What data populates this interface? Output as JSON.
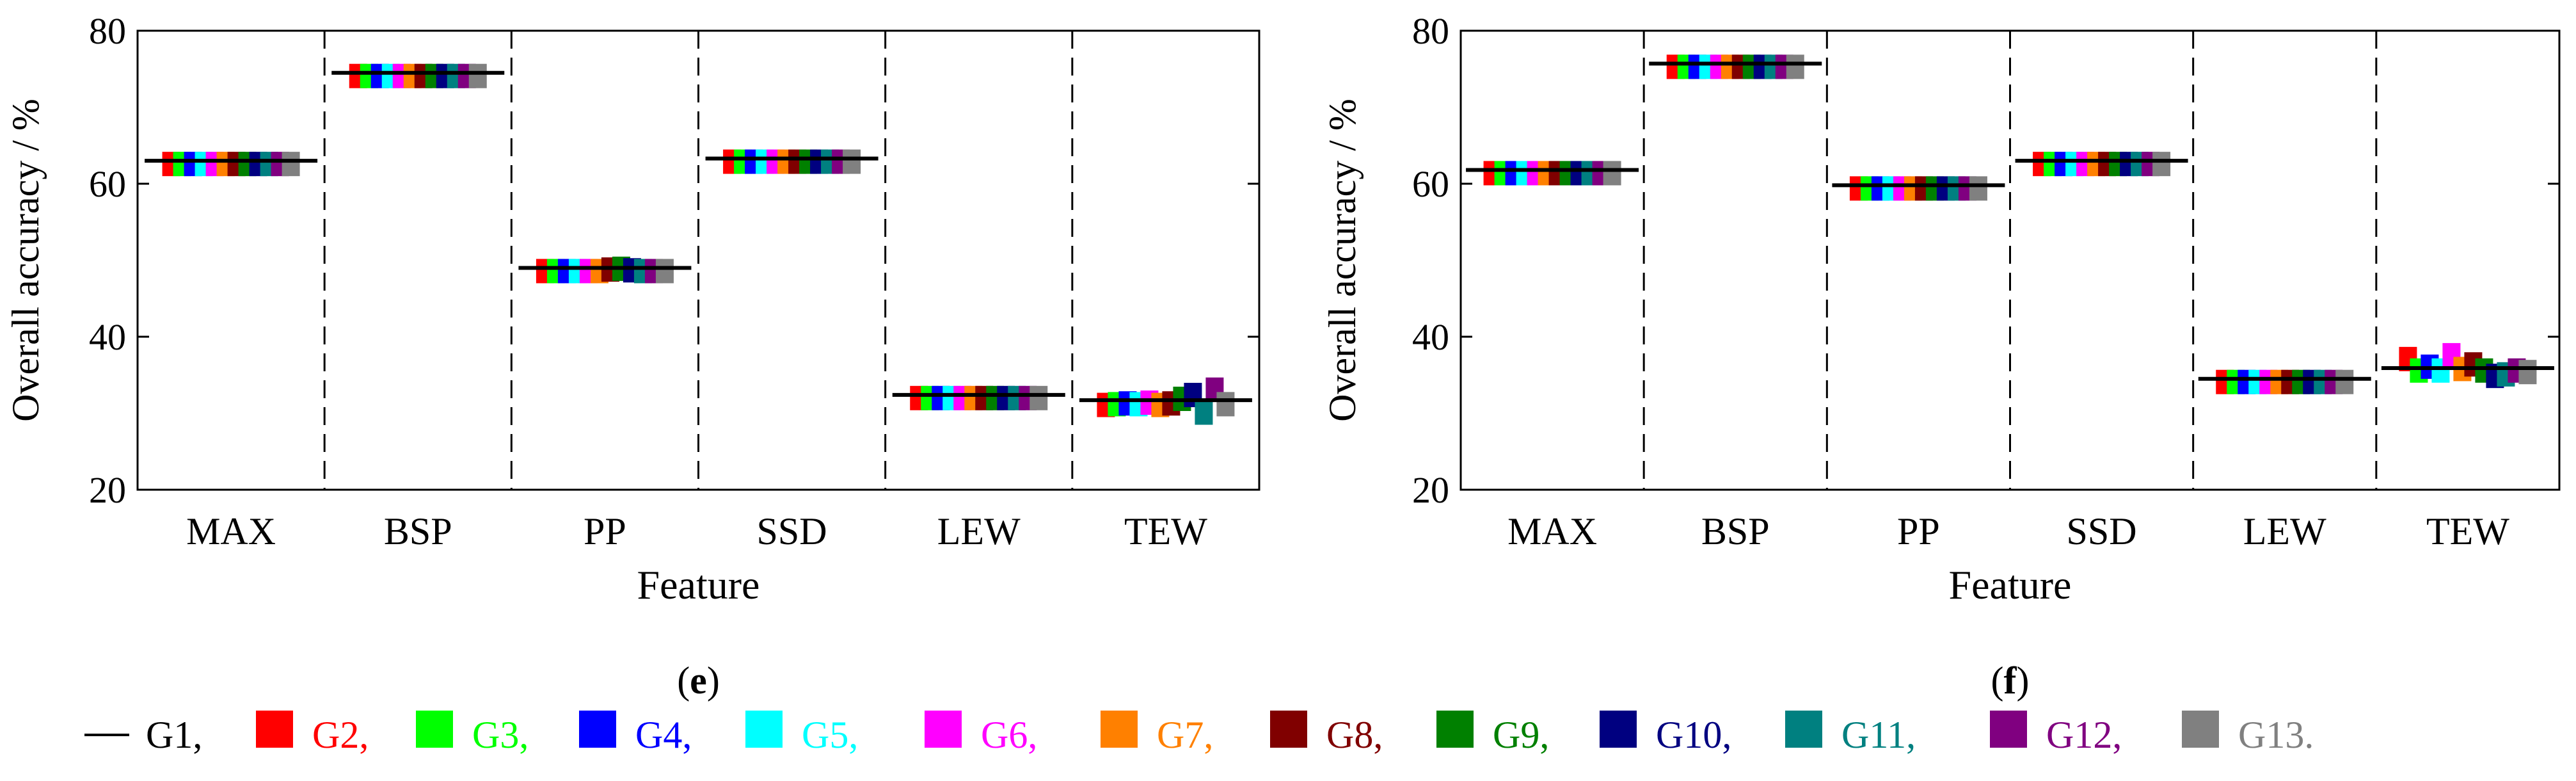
{
  "chart_data": [
    {
      "type": "scatter",
      "panel_label": "e",
      "xlabel": "Feature",
      "ylabel": "Overall accuracy / %",
      "ylim": [
        20,
        80
      ],
      "yticks": [
        20,
        40,
        60,
        80
      ],
      "categories": [
        "MAX",
        "BSP",
        "PP",
        "SSD",
        "LEW",
        "TEW"
      ],
      "baseline_G1": [
        63.0,
        74.5,
        49.0,
        63.3,
        32.4,
        31.7
      ],
      "series": [
        {
          "name": "G2",
          "values": [
            63.0,
            74.5,
            49.0,
            63.3,
            32.4,
            31.5
          ]
        },
        {
          "name": "G3",
          "values": [
            63.0,
            74.5,
            49.0,
            63.3,
            32.4,
            31.6
          ]
        },
        {
          "name": "G4",
          "values": [
            63.0,
            74.5,
            49.0,
            63.3,
            32.4,
            31.7
          ]
        },
        {
          "name": "G5",
          "values": [
            63.0,
            74.5,
            49.0,
            63.3,
            32.4,
            31.6
          ]
        },
        {
          "name": "G6",
          "values": [
            63.0,
            74.5,
            49.0,
            63.3,
            32.4,
            31.8
          ]
        },
        {
          "name": "G7",
          "values": [
            63.0,
            74.5,
            49.0,
            63.3,
            32.4,
            31.5
          ]
        },
        {
          "name": "G8",
          "values": [
            63.0,
            74.5,
            49.2,
            63.3,
            32.4,
            31.7
          ]
        },
        {
          "name": "G9",
          "values": [
            63.0,
            74.5,
            49.3,
            63.3,
            32.4,
            32.3
          ]
        },
        {
          "name": "G10",
          "values": [
            63.0,
            74.5,
            49.1,
            63.3,
            32.4,
            32.8
          ]
        },
        {
          "name": "G11",
          "values": [
            63.0,
            74.5,
            49.0,
            63.3,
            32.4,
            30.5
          ]
        },
        {
          "name": "G12",
          "values": [
            63.0,
            74.5,
            49.0,
            63.3,
            32.4,
            33.5
          ]
        },
        {
          "name": "G13",
          "values": [
            63.0,
            74.5,
            49.0,
            63.3,
            32.4,
            31.6
          ]
        }
      ]
    },
    {
      "type": "scatter",
      "panel_label": "f",
      "xlabel": "Feature",
      "ylabel": "Overall accuracy / %",
      "ylim": [
        20,
        80
      ],
      "yticks": [
        20,
        40,
        60,
        80
      ],
      "categories": [
        "MAX",
        "BSP",
        "PP",
        "SSD",
        "LEW",
        "TEW"
      ],
      "baseline_G1": [
        61.8,
        75.7,
        59.8,
        63.0,
        34.5,
        35.9
      ],
      "series": [
        {
          "name": "G2",
          "values": [
            61.8,
            75.7,
            59.8,
            63.0,
            34.5,
            37.5
          ]
        },
        {
          "name": "G3",
          "values": [
            61.8,
            75.7,
            59.8,
            63.0,
            34.5,
            36.0
          ]
        },
        {
          "name": "G4",
          "values": [
            61.8,
            75.7,
            59.8,
            63.0,
            34.5,
            36.5
          ]
        },
        {
          "name": "G5",
          "values": [
            61.8,
            75.7,
            59.8,
            63.0,
            34.5,
            36.0
          ]
        },
        {
          "name": "G6",
          "values": [
            61.8,
            75.7,
            59.8,
            63.0,
            34.5,
            38.0
          ]
        },
        {
          "name": "G7",
          "values": [
            61.8,
            75.7,
            59.8,
            63.0,
            34.5,
            36.2
          ]
        },
        {
          "name": "G8",
          "values": [
            61.8,
            75.7,
            59.8,
            63.0,
            34.5,
            36.8
          ]
        },
        {
          "name": "G9",
          "values": [
            61.8,
            75.7,
            59.8,
            63.0,
            34.5,
            36.0
          ]
        },
        {
          "name": "G10",
          "values": [
            61.8,
            75.7,
            59.8,
            63.0,
            34.5,
            35.3
          ]
        },
        {
          "name": "G11",
          "values": [
            61.8,
            75.7,
            59.8,
            63.0,
            34.5,
            35.5
          ]
        },
        {
          "name": "G12",
          "values": [
            61.8,
            75.7,
            59.8,
            63.0,
            34.5,
            36.0
          ]
        },
        {
          "name": "G13",
          "values": [
            61.8,
            75.7,
            59.8,
            63.0,
            34.5,
            35.8
          ]
        }
      ]
    }
  ],
  "legend": {
    "items": [
      {
        "label": "G1,",
        "color": "#000000",
        "marker": "line"
      },
      {
        "label": "G2,",
        "color": "#ff0000",
        "marker": "square"
      },
      {
        "label": "G3,",
        "color": "#00ff00",
        "marker": "square"
      },
      {
        "label": "G4,",
        "color": "#0000ff",
        "marker": "square"
      },
      {
        "label": "G5,",
        "color": "#00ffff",
        "marker": "square"
      },
      {
        "label": "G6,",
        "color": "#ff00ff",
        "marker": "square"
      },
      {
        "label": "G7,",
        "color": "#ff8000",
        "marker": "square"
      },
      {
        "label": "G8,",
        "color": "#800000",
        "marker": "square"
      },
      {
        "label": "G9,",
        "color": "#008000",
        "marker": "square"
      },
      {
        "label": "G10,",
        "color": "#000080",
        "marker": "square"
      },
      {
        "label": "G11,",
        "color": "#008080",
        "marker": "square"
      },
      {
        "label": "G12,",
        "color": "#800080",
        "marker": "square"
      },
      {
        "label": "G13.",
        "color": "#808080",
        "marker": "square"
      }
    ]
  }
}
